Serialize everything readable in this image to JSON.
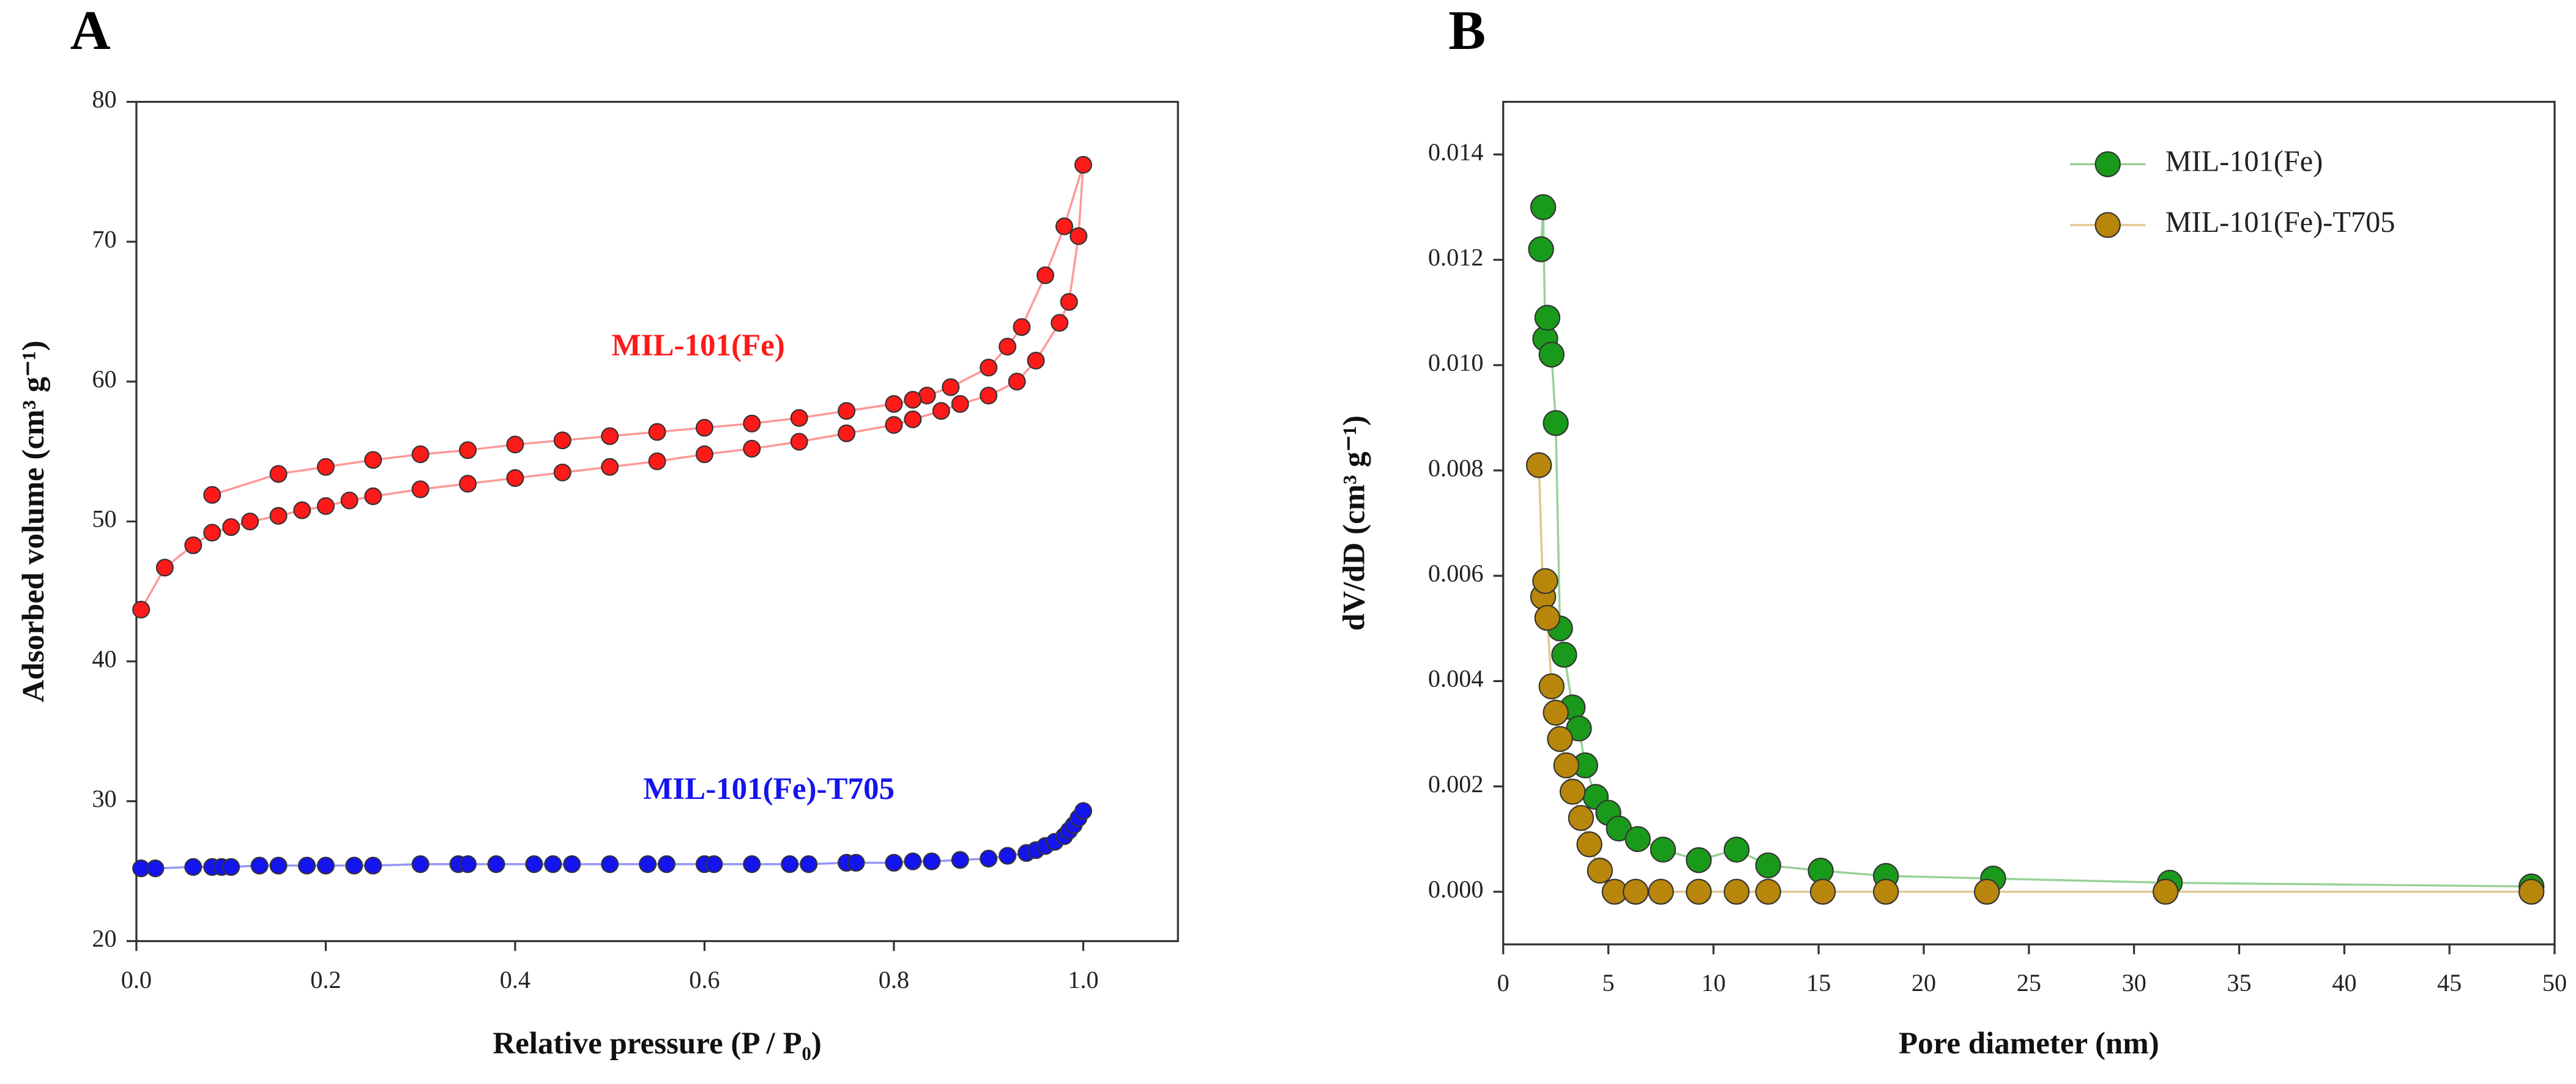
{
  "chart_data": [
    {
      "type": "line",
      "label": "A",
      "xlabel": "Relative pressure (P / P₀)",
      "ylabel": "Adsorbed volume (cm³ g⁻¹)",
      "xlim": [
        0,
        1.1
      ],
      "ylim": [
        20,
        80
      ],
      "xticks": [
        {
          "value": 0,
          "label": "0.0"
        },
        {
          "value": 0.2,
          "label": "0.2"
        },
        {
          "value": 0.4,
          "label": "0.4"
        },
        {
          "value": 0.6,
          "label": "0.6"
        },
        {
          "value": 0.8,
          "label": "0.8"
        },
        {
          "value": 1,
          "label": "1.0"
        }
      ],
      "yticks": [
        20,
        30,
        40,
        50,
        60,
        70,
        80
      ],
      "legend": "annotation",
      "series": [
        {
          "name": "MIL-101(Fe)",
          "color": "#ff1a1a",
          "x": [
            0.005,
            0.03,
            0.06,
            0.08,
            0.1,
            0.12,
            0.15,
            0.175,
            0.2,
            0.225,
            0.25,
            0.3,
            0.35,
            0.4,
            0.45,
            0.5,
            0.55,
            0.6,
            0.65,
            0.7,
            0.75,
            0.8,
            0.82,
            0.85,
            0.87,
            0.9,
            0.93,
            0.95,
            0.975,
            0.985,
            0.995,
            1.0,
            0.98,
            0.96,
            0.935,
            0.92,
            0.9,
            0.86,
            0.835,
            0.82,
            0.8,
            0.75,
            0.7,
            0.65,
            0.6,
            0.55,
            0.5,
            0.45,
            0.4,
            0.35,
            0.3,
            0.25,
            0.2,
            0.15,
            0.08
          ],
          "values": [
            43.7,
            46.7,
            48.3,
            49.2,
            49.6,
            50.0,
            50.4,
            50.8,
            51.1,
            51.5,
            51.8,
            52.3,
            52.7,
            53.1,
            53.5,
            53.9,
            54.3,
            54.8,
            55.2,
            55.7,
            56.3,
            56.9,
            57.3,
            57.9,
            58.4,
            59.0,
            60.0,
            61.5,
            64.2,
            65.7,
            70.4,
            75.5,
            71.1,
            67.6,
            63.9,
            62.5,
            61.0,
            59.6,
            59.0,
            58.7,
            58.4,
            57.9,
            57.4,
            57.0,
            56.7,
            56.4,
            56.1,
            55.8,
            55.5,
            55.1,
            54.8,
            54.4,
            53.9,
            53.4,
            51.9
          ]
        },
        {
          "name": "MIL-101(Fe)-T705",
          "color": "#1414ee",
          "x": [
            0.005,
            0.02,
            0.06,
            0.08,
            0.09,
            0.1,
            0.13,
            0.15,
            0.18,
            0.2,
            0.23,
            0.25,
            0.3,
            0.34,
            0.35,
            0.38,
            0.42,
            0.44,
            0.46,
            0.5,
            0.54,
            0.56,
            0.6,
            0.61,
            0.65,
            0.69,
            0.71,
            0.75,
            0.76,
            0.8,
            0.82,
            0.84,
            0.87,
            0.9,
            0.92,
            0.94,
            0.95,
            0.96,
            0.97,
            0.98,
            0.985,
            0.99,
            0.995,
            1.0
          ],
          "values": [
            25.2,
            25.2,
            25.3,
            25.3,
            25.3,
            25.3,
            25.4,
            25.4,
            25.4,
            25.4,
            25.4,
            25.4,
            25.5,
            25.5,
            25.5,
            25.5,
            25.5,
            25.5,
            25.5,
            25.5,
            25.5,
            25.5,
            25.5,
            25.5,
            25.5,
            25.5,
            25.5,
            25.6,
            25.6,
            25.6,
            25.7,
            25.7,
            25.8,
            25.9,
            26.1,
            26.3,
            26.5,
            26.8,
            27.1,
            27.5,
            27.9,
            28.3,
            28.8,
            29.3
          ]
        }
      ]
    },
    {
      "type": "line",
      "label": "B",
      "xlabel": "Pore diameter (nm)",
      "ylabel": "dV/dD (cm³ g⁻¹)",
      "xlim": [
        0,
        50
      ],
      "ylim": [
        -0.001,
        0.015
      ],
      "xticks": [
        0,
        5,
        10,
        15,
        20,
        25,
        30,
        35,
        40,
        45,
        50
      ],
      "yticks": [
        {
          "value": 0,
          "label": "0.000"
        },
        {
          "value": 0.002,
          "label": "0.002"
        },
        {
          "value": 0.004,
          "label": "0.004"
        },
        {
          "value": 0.006,
          "label": "0.006"
        },
        {
          "value": 0.008,
          "label": "0.008"
        },
        {
          "value": 0.01,
          "label": "0.010"
        },
        {
          "value": 0.012,
          "label": "0.012"
        },
        {
          "value": 0.014,
          "label": "0.014"
        }
      ],
      "legend": "upper right",
      "series": [
        {
          "name": "MIL-101(Fe)",
          "color": "#1a9a1a",
          "x": [
            1.8,
            1.9,
            2.0,
            2.1,
            2.3,
            2.5,
            2.7,
            2.9,
            3.3,
            3.6,
            3.9,
            4.4,
            5.0,
            5.5,
            6.4,
            7.6,
            9.3,
            11.1,
            12.6,
            15.1,
            18.2,
            23.3,
            31.7,
            48.9
          ],
          "values": [
            0.0122,
            0.013,
            0.0105,
            0.0109,
            0.0102,
            0.0089,
            0.005,
            0.0045,
            0.0035,
            0.0031,
            0.0024,
            0.0018,
            0.0015,
            0.0012,
            0.001,
            0.0008,
            0.0006,
            0.0008,
            0.0005,
            0.0004,
            0.0003,
            0.00025,
            0.00017,
            0.0001
          ]
        },
        {
          "name": "MIL-101(Fe)-T705",
          "color": "#b8860b",
          "x": [
            1.7,
            1.9,
            2.0,
            2.1,
            2.3,
            2.5,
            2.7,
            3.0,
            3.3,
            3.7,
            4.1,
            4.6,
            5.3,
            6.3,
            7.5,
            9.3,
            11.1,
            12.6,
            15.2,
            18.2,
            23.0,
            31.5,
            48.9
          ],
          "values": [
            0.0081,
            0.0056,
            0.0059,
            0.0052,
            0.0039,
            0.0034,
            0.0029,
            0.0024,
            0.0019,
            0.0014,
            0.0009,
            0.0004,
            0,
            0,
            0,
            0,
            0,
            0,
            0,
            0,
            0,
            0,
            0
          ]
        }
      ]
    }
  ]
}
